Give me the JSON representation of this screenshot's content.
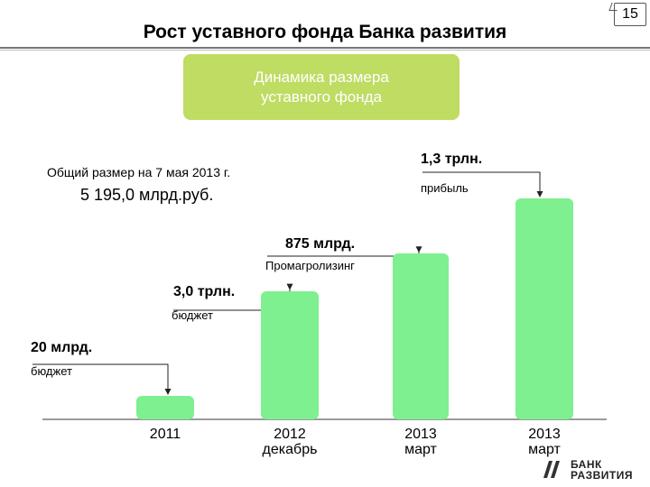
{
  "page_number": "15",
  "title": "Рост уставного фонда Банка развития",
  "badge": {
    "line1": "Динамика размера",
    "line2": "уставного фонда"
  },
  "total": {
    "label": "Общий размер на 7 мая 2013 г.",
    "value": "5 195,0 млрд.руб."
  },
  "logo": {
    "line1": "БАНК",
    "line2": "РАЗВИТИЯ"
  },
  "colors": {
    "bar": "#7ef08f",
    "badge": "#bfdc63"
  },
  "chart_data": {
    "type": "bar",
    "categories": [
      {
        "line1": "2011",
        "line2": ""
      },
      {
        "line1": "2012",
        "line2": "декабрь"
      },
      {
        "line1": "2013",
        "line2": "март"
      },
      {
        "line1": "2013",
        "line2": "март"
      }
    ],
    "values": [
      20,
      3020,
      3895,
      5195
    ],
    "unit": "млрд.руб.",
    "annotations": [
      {
        "value": "20 млрд.",
        "note": "бюджет"
      },
      {
        "value": "3,0 трлн.",
        "note": "бюджет"
      },
      {
        "value": "875 млрд.",
        "note": "Промагролизинг"
      },
      {
        "value": "1,3 трлн.",
        "note": "прибыль"
      }
    ]
  }
}
